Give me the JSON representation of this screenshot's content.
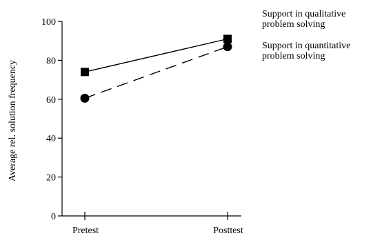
{
  "chart_data": {
    "type": "line",
    "title": "",
    "xlabel": "",
    "ylabel": "Average rel. solution frequency",
    "categories": [
      "Pretest",
      "Posttest"
    ],
    "ylim": [
      0,
      100
    ],
    "yticks": [
      0,
      20,
      40,
      60,
      80,
      100
    ],
    "grid": false,
    "legend_position": "top-right",
    "series": [
      {
        "name": "Support in qualitative problem solving",
        "name_lines": [
          "Support in qualitative",
          "problem solving"
        ],
        "values": [
          74,
          91
        ],
        "marker": "square",
        "line_style": "solid",
        "color": "#000000"
      },
      {
        "name": "Support in quantitative problem solving",
        "name_lines": [
          "Support in quantitative",
          "problem solving"
        ],
        "values": [
          60.5,
          87
        ],
        "marker": "circle",
        "line_style": "dashed",
        "color": "#000000"
      }
    ]
  }
}
